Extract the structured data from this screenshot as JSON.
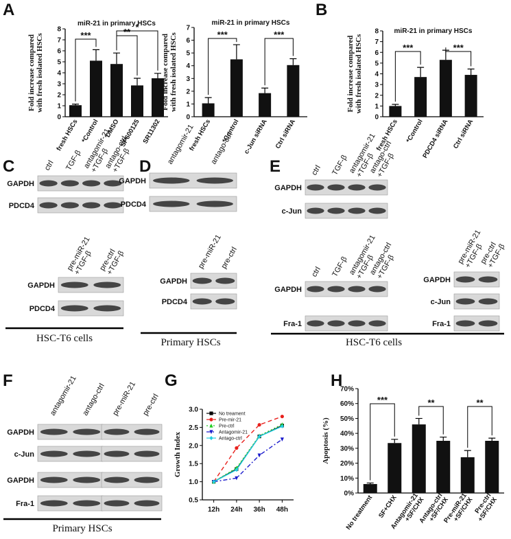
{
  "panel_letters": [
    "A",
    "B",
    "C",
    "D",
    "E",
    "F",
    "G",
    "H"
  ],
  "chart_data": [
    {
      "type": "bar",
      "title": "miR-21 in primary HSCs",
      "y_label": "Fold increase compared\nwith fresh isolated HSCs",
      "categories": [
        "fresh HSCs",
        "*Control",
        "DMSO",
        "SP600125",
        "SR11302"
      ],
      "values": [
        1.05,
        5.1,
        4.8,
        2.85,
        3.5
      ],
      "errors": [
        0.1,
        1.0,
        1.0,
        0.65,
        0.45
      ],
      "color": "#111111",
      "ylim": [
        0,
        8
      ],
      "yticks": [
        0,
        1,
        2,
        3,
        4,
        5,
        6,
        7,
        8
      ],
      "annotations": [
        "***",
        "**",
        "*"
      ]
    },
    {
      "type": "bar",
      "title": "miR-21 in primary HSCs",
      "y_label": "Fold increase compared\nwith fresh isolated HSCs",
      "categories": [
        "fresh HSCs",
        "*Control",
        "c-Jun siRNA",
        "Ctrl siRNA"
      ],
      "values": [
        1.05,
        4.5,
        1.85,
        4.05
      ],
      "errors": [
        0.45,
        1.15,
        0.4,
        0.5
      ],
      "color": "#111111",
      "ylim": [
        0,
        7
      ],
      "yticks": [
        0,
        1,
        2,
        3,
        4,
        5,
        6,
        7
      ],
      "annotations": [
        "***",
        "***"
      ]
    },
    {
      "type": "bar",
      "title": "miR-21 in primary HSCs",
      "y_label": "Fold increase compared\nwith fresh isolated HSCs",
      "categories": [
        "fresh HSCs",
        "*Control",
        "PDCD4 siRNA",
        "Ctrl siRNA"
      ],
      "values": [
        1.0,
        3.7,
        5.3,
        3.9
      ],
      "errors": [
        0.15,
        0.9,
        0.9,
        0.55
      ],
      "color": "#111111",
      "ylim": [
        0,
        8
      ],
      "yticks": [
        0,
        1,
        2,
        3,
        4,
        5,
        6,
        7,
        8
      ],
      "annotations": [
        "***",
        "***"
      ]
    },
    {
      "type": "line",
      "y_label": "Growth Index",
      "categories": [
        "12h",
        "24h",
        "36h",
        "48h"
      ],
      "series": [
        {
          "name": "No treament",
          "color": "#000000",
          "linestyle": "solid",
          "marker": "square",
          "values": [
            1.0,
            1.35,
            2.25,
            2.55
          ]
        },
        {
          "name": "Pre-mir-21",
          "color": "#e8201c",
          "linestyle": "dashed",
          "marker": "circle",
          "values": [
            1.0,
            1.93,
            2.57,
            2.8
          ]
        },
        {
          "name": "Pre-ctrl",
          "color": "#22cc22",
          "linestyle": "dotted",
          "marker": "triangle-up",
          "values": [
            1.0,
            1.38,
            2.27,
            2.58
          ]
        },
        {
          "name": "Antagomir-21",
          "color": "#1a1acc",
          "linestyle": "dashdot",
          "marker": "triangle-down",
          "values": [
            1.0,
            1.1,
            1.73,
            2.17
          ]
        },
        {
          "name": "Antago-ctrl",
          "color": "#22cce0",
          "linestyle": "solid",
          "marker": "diamond",
          "values": [
            1.0,
            1.33,
            2.25,
            2.53
          ]
        }
      ],
      "ylim": [
        0.5,
        3.0
      ],
      "yticks": [
        0.5,
        {
          "value": 1,
          "label": "1.0"
        },
        1.5,
        {
          "value": 2,
          "label": "2.0"
        },
        2.5,
        {
          "value": 3,
          "label": "3.0"
        }
      ],
      "legend": "upper-left"
    },
    {
      "type": "bar",
      "y_label": "Apoptosis (%)",
      "categories": [
        "No treatment",
        "SF+CHX",
        "Antagomir-21\n+SF/CHX",
        "Antago-ctrl\n+SF/CHX",
        "Pre-miR-21\n+SF/CHX",
        "Pre-ctrl\n+SF/CHX"
      ],
      "values": [
        6,
        33.5,
        46,
        35,
        24,
        35
      ],
      "errors": [
        0.7,
        2.5,
        4,
        2.5,
        4.5,
        1.8
      ],
      "color": "#111111",
      "ylim": [
        0,
        70
      ],
      "yticks": [
        {
          "value": 0,
          "label": "0%"
        },
        {
          "value": 10,
          "label": "10%"
        },
        {
          "value": 20,
          "label": "20%"
        },
        {
          "value": 30,
          "label": "30%"
        },
        {
          "value": 40,
          "label": "40%"
        },
        {
          "value": 50,
          "label": "50%"
        },
        {
          "value": 60,
          "label": "60%"
        },
        {
          "value": 70,
          "label": "70%"
        }
      ],
      "annotations": [
        "***",
        "**",
        "**"
      ]
    }
  ],
  "blots": [
    {
      "caption": "HSC-T6 cells",
      "groups": [
        {
          "lanes": [
            "ctrl",
            "TGF-β",
            "antagomir-21\n+TGF-β",
            "antago-ctrl\n+TGF-β"
          ],
          "rows": [
            "GAPDH",
            "PDCD4"
          ]
        },
        {
          "lanes": [
            "pre-miR-21\n+TGF-β",
            "pre-ctrl\n+TGF-β"
          ],
          "rows": [
            "GAPDH",
            "PDCD4"
          ]
        }
      ]
    },
    {
      "caption": "Primary HSCs",
      "groups": [
        {
          "lanes": [
            "antagomir-21",
            "antago-ctrl"
          ],
          "rows": [
            "GAPDH",
            "PDCD4"
          ]
        },
        {
          "lanes": [
            "pre-miR-21",
            "pre-ctrl"
          ],
          "rows": [
            "GAPDH",
            "PDCD4"
          ]
        }
      ]
    },
    {
      "caption": "HSC-T6 cells",
      "groups": [
        {
          "lanes": [
            "ctrl",
            "TGF-β",
            "antagomir-21\n+TGF-β",
            "antago-ctrl\n+TGF-β"
          ],
          "rows": [
            "GAPDH",
            "c-Jun"
          ]
        },
        {
          "lanes": [
            "ctrl",
            "TGF-β",
            "antagomir-21\n+TGF-β",
            "antago-ctrl\n+TGF-β"
          ],
          "rows": [
            "GAPDH",
            "Fra-1"
          ]
        },
        {
          "lanes": [
            "pre-miR-21\n+TGF-β",
            "pre-ctrl\n+TGF-β"
          ],
          "rows": [
            "GAPDH",
            "c-Jun",
            "Fra-1"
          ]
        }
      ]
    },
    {
      "caption": "Primary HSCs",
      "groups": [
        {
          "lanes": [
            "antagomir-21",
            "antago-ctrl"
          ],
          "rows": [
            "GAPDH",
            "c-Jun",
            "GAPDH",
            "Fra-1"
          ]
        },
        {
          "lanes": [
            "pre-miR-21",
            "pre-ctrl"
          ]
        }
      ]
    }
  ]
}
